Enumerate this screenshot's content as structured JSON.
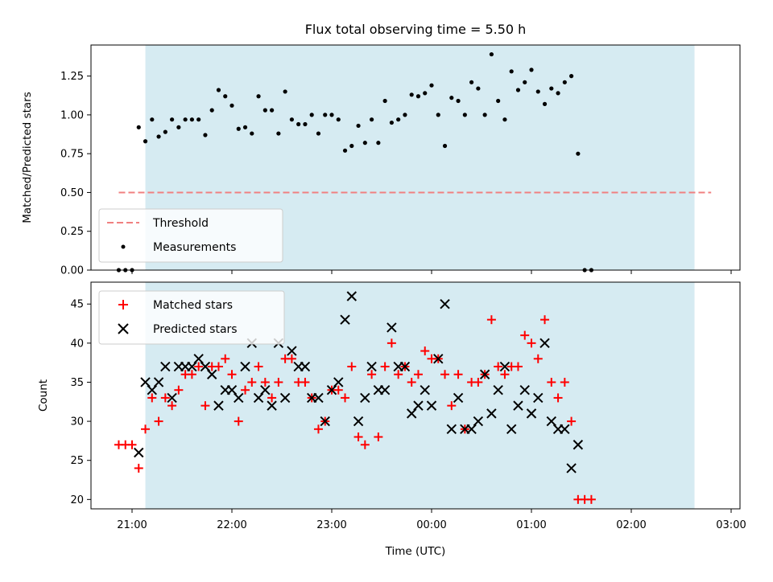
{
  "chart_data": [
    {
      "type": "scatter",
      "title": "Flux total observing time = 5.50 h",
      "xlabel": "",
      "ylabel": "Matched/Predicted stars",
      "ylim": [
        0,
        1.45
      ],
      "yticks": [
        "0.00",
        "0.25",
        "0.50",
        "0.75",
        "1.00",
        "1.25"
      ],
      "shaded_interval": [
        "21:08",
        "02:38"
      ],
      "legend_position": "lower-left",
      "threshold": {
        "name": "Threshold",
        "value": 0.5,
        "x_range": [
          "20:52",
          "02:48"
        ],
        "color": "#f08080"
      },
      "series": [
        {
          "name": "Measurements",
          "color": "#000000",
          "points": [
            [
              "20:52",
              0.0
            ],
            [
              "20:56",
              0.0
            ],
            [
              "21:00",
              0.0
            ],
            [
              "21:04",
              0.92
            ],
            [
              "21:08",
              0.83
            ],
            [
              "21:12",
              0.97
            ],
            [
              "21:16",
              0.86
            ],
            [
              "21:20",
              0.89
            ],
            [
              "21:24",
              0.97
            ],
            [
              "21:28",
              0.92
            ],
            [
              "21:32",
              0.97
            ],
            [
              "21:36",
              0.97
            ],
            [
              "21:40",
              0.97
            ],
            [
              "21:44",
              0.87
            ],
            [
              "21:48",
              1.03
            ],
            [
              "21:52",
              1.16
            ],
            [
              "21:56",
              1.12
            ],
            [
              "22:00",
              1.06
            ],
            [
              "22:04",
              0.91
            ],
            [
              "22:08",
              0.92
            ],
            [
              "22:12",
              0.88
            ],
            [
              "22:16",
              1.12
            ],
            [
              "22:20",
              1.03
            ],
            [
              "22:24",
              1.03
            ],
            [
              "22:28",
              0.88
            ],
            [
              "22:32",
              1.15
            ],
            [
              "22:36",
              0.97
            ],
            [
              "22:40",
              0.94
            ],
            [
              "22:44",
              0.94
            ],
            [
              "22:48",
              1.0
            ],
            [
              "22:52",
              0.88
            ],
            [
              "22:56",
              1.0
            ],
            [
              "23:00",
              1.0
            ],
            [
              "23:04",
              0.97
            ],
            [
              "23:08",
              0.77
            ],
            [
              "23:12",
              0.8
            ],
            [
              "23:16",
              0.93
            ],
            [
              "23:20",
              0.82
            ],
            [
              "23:24",
              0.97
            ],
            [
              "23:28",
              0.82
            ],
            [
              "23:32",
              1.09
            ],
            [
              "23:36",
              0.95
            ],
            [
              "23:40",
              0.97
            ],
            [
              "23:44",
              1.0
            ],
            [
              "23:48",
              1.13
            ],
            [
              "23:52",
              1.12
            ],
            [
              "23:56",
              1.14
            ],
            [
              "00:00",
              1.19
            ],
            [
              "00:04",
              1.0
            ],
            [
              "00:08",
              0.8
            ],
            [
              "00:12",
              1.11
            ],
            [
              "00:16",
              1.09
            ],
            [
              "00:20",
              1.0
            ],
            [
              "00:24",
              1.21
            ],
            [
              "00:28",
              1.17
            ],
            [
              "00:32",
              1.0
            ],
            [
              "00:36",
              1.39
            ],
            [
              "00:40",
              1.09
            ],
            [
              "00:44",
              0.97
            ],
            [
              "00:48",
              1.28
            ],
            [
              "00:52",
              1.16
            ],
            [
              "00:56",
              1.21
            ],
            [
              "01:00",
              1.29
            ],
            [
              "01:04",
              1.15
            ],
            [
              "01:08",
              1.07
            ],
            [
              "01:12",
              1.17
            ],
            [
              "01:16",
              1.14
            ],
            [
              "01:20",
              1.21
            ],
            [
              "01:24",
              1.25
            ],
            [
              "01:28",
              0.75
            ],
            [
              "01:32",
              0.0
            ],
            [
              "01:36",
              0.0
            ]
          ]
        }
      ]
    },
    {
      "type": "scatter",
      "title": "",
      "xlabel": "Time (UTC)",
      "ylabel": "Count",
      "ylim": [
        18.8,
        47.8
      ],
      "yticks": [
        "20",
        "25",
        "30",
        "35",
        "40",
        "45"
      ],
      "xticks": [
        "21:00",
        "22:00",
        "23:00",
        "00:00",
        "01:00",
        "02:00",
        "03:00"
      ],
      "shaded_interval": [
        "21:08",
        "02:38"
      ],
      "legend_position": "upper-left",
      "series": [
        {
          "name": "Matched stars",
          "marker": "+",
          "color": "#ff0000",
          "points": [
            [
              "20:52",
              27
            ],
            [
              "20:56",
              27
            ],
            [
              "21:00",
              27
            ],
            [
              "21:04",
              24
            ],
            [
              "21:08",
              29
            ],
            [
              "21:12",
              33
            ],
            [
              "21:16",
              30
            ],
            [
              "21:20",
              33
            ],
            [
              "21:24",
              32
            ],
            [
              "21:28",
              34
            ],
            [
              "21:32",
              36
            ],
            [
              "21:36",
              36
            ],
            [
              "21:40",
              37
            ],
            [
              "21:44",
              32
            ],
            [
              "21:48",
              37
            ],
            [
              "21:52",
              37
            ],
            [
              "21:56",
              38
            ],
            [
              "22:00",
              36
            ],
            [
              "22:04",
              30
            ],
            [
              "22:08",
              34
            ],
            [
              "22:12",
              35
            ],
            [
              "22:16",
              37
            ],
            [
              "22:20",
              35
            ],
            [
              "22:24",
              33
            ],
            [
              "22:28",
              35
            ],
            [
              "22:32",
              38
            ],
            [
              "22:36",
              38
            ],
            [
              "22:40",
              35
            ],
            [
              "22:44",
              35
            ],
            [
              "22:48",
              33
            ],
            [
              "22:52",
              29
            ],
            [
              "22:56",
              30
            ],
            [
              "23:00",
              34
            ],
            [
              "23:04",
              34
            ],
            [
              "23:08",
              33
            ],
            [
              "23:12",
              37
            ],
            [
              "23:16",
              28
            ],
            [
              "23:20",
              27
            ],
            [
              "23:24",
              36
            ],
            [
              "23:28",
              28
            ],
            [
              "23:32",
              37
            ],
            [
              "23:36",
              40
            ],
            [
              "23:40",
              36
            ],
            [
              "23:44",
              37
            ],
            [
              "23:48",
              35
            ],
            [
              "23:52",
              36
            ],
            [
              "23:56",
              39
            ],
            [
              "00:00",
              38
            ],
            [
              "00:04",
              38
            ],
            [
              "00:08",
              36
            ],
            [
              "00:12",
              32
            ],
            [
              "00:16",
              36
            ],
            [
              "00:20",
              29
            ],
            [
              "00:24",
              35
            ],
            [
              "00:28",
              35
            ],
            [
              "00:32",
              36
            ],
            [
              "00:36",
              43
            ],
            [
              "00:40",
              37
            ],
            [
              "00:44",
              36
            ],
            [
              "00:48",
              37
            ],
            [
              "00:52",
              37
            ],
            [
              "00:56",
              41
            ],
            [
              "01:00",
              40
            ],
            [
              "01:04",
              38
            ],
            [
              "01:08",
              43
            ],
            [
              "01:12",
              35
            ],
            [
              "01:16",
              33
            ],
            [
              "01:20",
              35
            ],
            [
              "01:24",
              30
            ],
            [
              "01:28",
              20
            ],
            [
              "01:32",
              20
            ],
            [
              "01:36",
              20
            ]
          ]
        },
        {
          "name": "Predicted stars",
          "marker": "x",
          "color": "#000000",
          "points": [
            [
              "21:04",
              26
            ],
            [
              "21:08",
              35
            ],
            [
              "21:12",
              34
            ],
            [
              "21:16",
              35
            ],
            [
              "21:20",
              37
            ],
            [
              "21:24",
              33
            ],
            [
              "21:28",
              37
            ],
            [
              "21:32",
              37
            ],
            [
              "21:36",
              37
            ],
            [
              "21:40",
              38
            ],
            [
              "21:44",
              37
            ],
            [
              "21:48",
              36
            ],
            [
              "21:52",
              32
            ],
            [
              "21:56",
              34
            ],
            [
              "22:00",
              34
            ],
            [
              "22:04",
              33
            ],
            [
              "22:08",
              37
            ],
            [
              "22:12",
              40
            ],
            [
              "22:16",
              33
            ],
            [
              "22:20",
              34
            ],
            [
              "22:24",
              32
            ],
            [
              "22:28",
              40
            ],
            [
              "22:32",
              33
            ],
            [
              "22:36",
              39
            ],
            [
              "22:40",
              37
            ],
            [
              "22:44",
              37
            ],
            [
              "22:48",
              33
            ],
            [
              "22:52",
              33
            ],
            [
              "22:56",
              30
            ],
            [
              "23:00",
              34
            ],
            [
              "23:04",
              35
            ],
            [
              "23:08",
              43
            ],
            [
              "23:12",
              46
            ],
            [
              "23:16",
              30
            ],
            [
              "23:20",
              33
            ],
            [
              "23:24",
              37
            ],
            [
              "23:28",
              34
            ],
            [
              "23:32",
              34
            ],
            [
              "23:36",
              42
            ],
            [
              "23:40",
              37
            ],
            [
              "23:44",
              37
            ],
            [
              "23:48",
              31
            ],
            [
              "23:52",
              32
            ],
            [
              "23:56",
              34
            ],
            [
              "00:00",
              32
            ],
            [
              "00:04",
              38
            ],
            [
              "00:08",
              45
            ],
            [
              "00:12",
              29
            ],
            [
              "00:16",
              33
            ],
            [
              "00:20",
              29
            ],
            [
              "00:24",
              29
            ],
            [
              "00:28",
              30
            ],
            [
              "00:32",
              36
            ],
            [
              "00:36",
              31
            ],
            [
              "00:40",
              34
            ],
            [
              "00:44",
              37
            ],
            [
              "00:48",
              29
            ],
            [
              "00:52",
              32
            ],
            [
              "00:56",
              34
            ],
            [
              "01:00",
              31
            ],
            [
              "01:04",
              33
            ],
            [
              "01:08",
              40
            ],
            [
              "01:12",
              30
            ],
            [
              "01:16",
              29
            ],
            [
              "01:20",
              29
            ],
            [
              "01:24",
              24
            ],
            [
              "01:28",
              27
            ]
          ]
        }
      ]
    }
  ]
}
